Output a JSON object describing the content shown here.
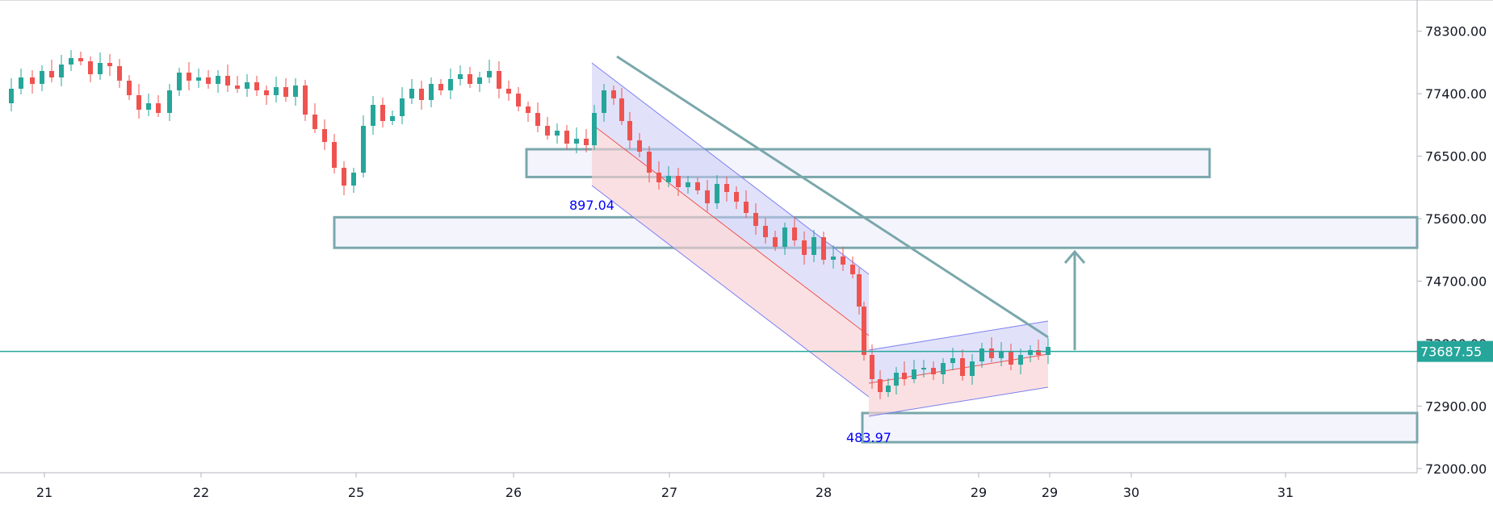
{
  "chart_data": {
    "type": "candlestick",
    "x_ticks": [
      "21",
      "22",
      "25",
      "26",
      "27",
      "28",
      "29",
      "29",
      "30",
      "31"
    ],
    "y_ticks": [
      "78300.00",
      "77400.00",
      "76500.00",
      "75600.00",
      "74700.00",
      "73800.00",
      "72900.00",
      "72000.00"
    ],
    "y_tick_values": [
      78300,
      77400,
      76500,
      75600,
      74700,
      73800,
      72900,
      72000
    ],
    "ylim": [
      71940,
      78750
    ],
    "current_price": 73687.55,
    "current_price_label": "73687.55",
    "annotations": [
      "897.04",
      "483.97"
    ],
    "colors": {
      "up": "#26a69a",
      "down": "#ef5350",
      "level_line": "#7aa7ab",
      "channel_blue": "#c8caf5",
      "channel_red": "#f8cfd3",
      "zone_fill": "#f4f4fc",
      "price_badge": "#26a69a"
    },
    "zones": [
      {
        "name": "upper-zone",
        "top": 76600,
        "bottom": 76200
      },
      {
        "name": "middle-zone",
        "top": 75620,
        "bottom": 75180
      },
      {
        "name": "lower-zone",
        "top": 72800,
        "bottom": 72380
      }
    ],
    "trendline": {
      "from": {
        "x": "26-late",
        "y": 78150
      },
      "to": {
        "x": "29",
        "y": 73870
      }
    },
    "candles_ohlc_segments": [
      {
        "start": [
          0,
          77200
        ],
        "moves": [
          160,
          -120,
          180,
          -60,
          140,
          -150,
          200,
          150,
          -100,
          -200,
          180,
          120,
          -80,
          -300,
          -150,
          60,
          -200,
          180,
          90,
          -120
        ]
      },
      {
        "start": [
          20,
          77700
        ],
        "moves": [
          100,
          -200,
          -150,
          120,
          60,
          -150,
          90,
          -200,
          -100,
          -80,
          200,
          -180,
          -300,
          -400,
          -500,
          -150,
          -600,
          -300,
          400,
          500
        ]
      },
      {
        "start": [
          40,
          76500
        ],
        "moves": [
          400,
          200,
          150,
          -120,
          180,
          100,
          -50,
          120,
          -180,
          150,
          80,
          -60,
          100,
          -150,
          80,
          -200,
          -100,
          -150,
          -200,
          -100
        ]
      }
    ]
  }
}
